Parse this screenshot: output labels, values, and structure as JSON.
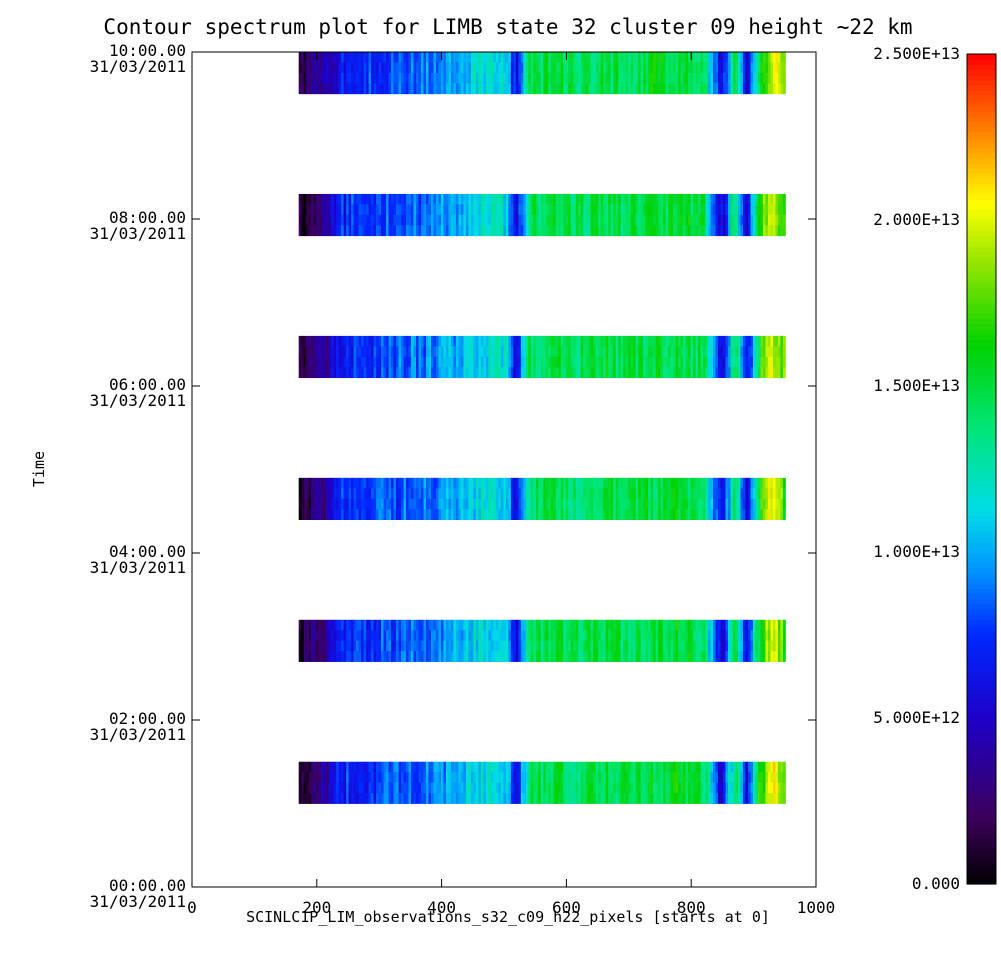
{
  "chart_data": {
    "type": "heatmap",
    "title": "Contour spectrum plot for LIMB state 32 cluster 09 height ~22 km",
    "xlabel": "SCINLC1P_LIM_observations_s32_c09_h22_pixels [starts at 0]",
    "ylabel": "Time",
    "xlim": [
      0,
      1000
    ],
    "x_ticks": [
      "0",
      "200",
      "400",
      "600",
      "800",
      "1000"
    ],
    "x_tick_values": [
      0,
      200,
      400,
      600,
      800,
      1000
    ],
    "y_ticks": [
      {
        "time": "00:00.00",
        "date": "31/03/2011",
        "hours": 0
      },
      {
        "time": "02:00.00",
        "date": "31/03/2011",
        "hours": 2
      },
      {
        "time": "04:00.00",
        "date": "31/03/2011",
        "hours": 4
      },
      {
        "time": "06:00.00",
        "date": "31/03/2011",
        "hours": 6
      },
      {
        "time": "08:00.00",
        "date": "31/03/2011",
        "hours": 8
      },
      {
        "time": "10:00.00",
        "date": "31/03/2011",
        "hours": 10
      }
    ],
    "ylim_hours": [
      0,
      10
    ],
    "observations": [
      {
        "start_hours": 1.0,
        "end_hours": 1.5,
        "x_start": 171,
        "x_end": 950
      },
      {
        "start_hours": 2.7,
        "end_hours": 3.2,
        "x_start": 171,
        "x_end": 950
      },
      {
        "start_hours": 4.4,
        "end_hours": 4.9,
        "x_start": 171,
        "x_end": 950
      },
      {
        "start_hours": 6.1,
        "end_hours": 6.6,
        "x_start": 171,
        "x_end": 950
      },
      {
        "start_hours": 7.8,
        "end_hours": 8.3,
        "x_start": 171,
        "x_end": 950
      },
      {
        "start_hours": 9.5,
        "end_hours": 10.0,
        "x_start": 171,
        "x_end": 950
      }
    ],
    "colorbar": {
      "min": 0,
      "max": 25000000000000.0,
      "tick_values": [
        0,
        5000000000000.0,
        10000000000000.0,
        15000000000000.0,
        20000000000000.0,
        25000000000000.0
      ],
      "tick_labels": [
        "0.000",
        "5.000E+12",
        "1.000E+13",
        "1.500E+13",
        "2.000E+13",
        "2.500E+13"
      ],
      "colormap": "rainbow"
    },
    "spectrum_profile": [
      {
        "x": 171,
        "value": 1000000000000.0
      },
      {
        "x": 200,
        "value": 3000000000000.0
      },
      {
        "x": 220,
        "value": 4200000000000.0
      },
      {
        "x": 240,
        "value": 7000000000000.0
      },
      {
        "x": 260,
        "value": 7500000000000.0
      },
      {
        "x": 300,
        "value": 7800000000000.0
      },
      {
        "x": 340,
        "value": 8500000000000.0
      },
      {
        "x": 380,
        "value": 9000000000000.0
      },
      {
        "x": 420,
        "value": 10000000000000.0
      },
      {
        "x": 460,
        "value": 11500000000000.0
      },
      {
        "x": 500,
        "value": 12000000000000.0
      },
      {
        "x": 520,
        "value": 5500000000000.0
      },
      {
        "x": 540,
        "value": 14000000000000.0
      },
      {
        "x": 580,
        "value": 15000000000000.0
      },
      {
        "x": 620,
        "value": 14000000000000.0
      },
      {
        "x": 660,
        "value": 15000000000000.0
      },
      {
        "x": 700,
        "value": 14500000000000.0
      },
      {
        "x": 740,
        "value": 15000000000000.0
      },
      {
        "x": 780,
        "value": 15500000000000.0
      },
      {
        "x": 820,
        "value": 14500000000000.0
      },
      {
        "x": 850,
        "value": 5000000000000.0
      },
      {
        "x": 870,
        "value": 15000000000000.0
      },
      {
        "x": 890,
        "value": 5500000000000.0
      },
      {
        "x": 910,
        "value": 16000000000000.0
      },
      {
        "x": 930,
        "value": 20500000000000.0
      },
      {
        "x": 950,
        "value": 17000000000000.0
      }
    ]
  }
}
